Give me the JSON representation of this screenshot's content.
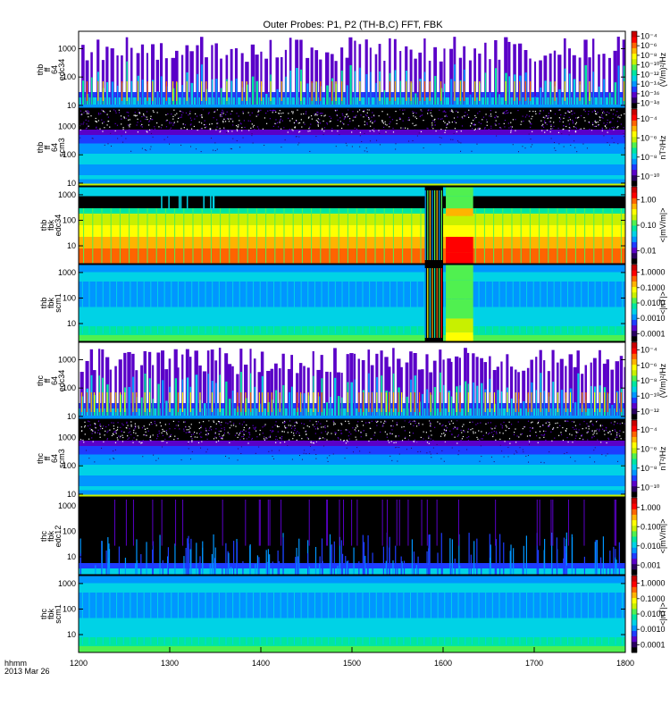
{
  "title": "Outer Probes: P1, P2 (TH-B,C) FFT, FBK",
  "time_axis": {
    "units_label": "hhmm",
    "date_label": "2013 Mar 26",
    "ticks": [
      "1200",
      "1300",
      "1400",
      "1500",
      "1600",
      "1700",
      "1800"
    ]
  },
  "colors": {
    "colormap": [
      "#000000",
      "#2a0060",
      "#5a00c8",
      "#1e3cff",
      "#0096ff",
      "#00d2e6",
      "#00e6a0",
      "#50f050",
      "#c8f000",
      "#ffff00",
      "#ffb400",
      "#ff6400",
      "#ff0000",
      "#c80000"
    ]
  },
  "chart_data": [
    {
      "type": "heatmap",
      "probe": "thb",
      "panel_label": [
        "thb",
        "ff",
        "64",
        "edc34"
      ],
      "y_ticks": [
        "10",
        "100",
        "1000"
      ],
      "ylim": [
        8,
        4096
      ],
      "scale": "log",
      "colorbar": {
        "label": "(V/m)²/Hz",
        "ticks": [
          "10⁻¹⁸",
          "10⁻¹⁶",
          "10⁻¹⁴",
          "10⁻¹²",
          "10⁻¹⁰",
          "10⁻⁸",
          "10⁻⁶",
          "10⁻⁴"
        ]
      },
      "style": "spiky"
    },
    {
      "type": "heatmap",
      "probe": "thb",
      "panel_label": [
        "thb",
        "ff",
        "64",
        "scm3"
      ],
      "y_ticks": [
        "10",
        "100",
        "1000"
      ],
      "ylim": [
        8,
        4096
      ],
      "scale": "log",
      "colorbar": {
        "label": "nT²/Hz",
        "ticks": [
          "10⁻¹⁰",
          "10⁻⁸",
          "10⁻⁶",
          "10⁻⁴"
        ]
      },
      "style": "scm"
    },
    {
      "type": "heatmap",
      "probe": "thb",
      "panel_label": [
        "thb",
        "fbk",
        "edc34"
      ],
      "y_ticks": [
        "10",
        "100",
        "1000"
      ],
      "ylim": [
        2,
        2048
      ],
      "scale": "log",
      "colorbar": {
        "label": "<|mV/m|>",
        "ticks": [
          "0.01",
          "0.10",
          "1.00"
        ]
      },
      "style": "fbk_e"
    },
    {
      "type": "heatmap",
      "probe": "thb",
      "panel_label": [
        "thb",
        "fbk",
        "scm1"
      ],
      "y_ticks": [
        "10",
        "100",
        "1000"
      ],
      "ylim": [
        2,
        2048
      ],
      "scale": "log",
      "colorbar": {
        "label": "<|nT|>",
        "ticks": [
          "0.0001",
          "0.0010",
          "0.0100",
          "0.1000",
          "1.0000"
        ]
      },
      "style": "fbk_b"
    },
    {
      "type": "heatmap",
      "probe": "thc",
      "panel_label": [
        "thc",
        "ff",
        "64",
        "edc34"
      ],
      "y_ticks": [
        "10",
        "100",
        "1000"
      ],
      "ylim": [
        8,
        4096
      ],
      "scale": "log",
      "colorbar": {
        "label": "(V/m)²/Hz",
        "ticks": [
          "10⁻¹²",
          "10⁻¹⁰",
          "10⁻⁸",
          "10⁻⁶",
          "10⁻⁴"
        ]
      },
      "style": "spiky_c"
    },
    {
      "type": "heatmap",
      "probe": "thc",
      "panel_label": [
        "thc",
        "ff",
        "64",
        "scm3"
      ],
      "y_ticks": [
        "10",
        "100",
        "1000"
      ],
      "ylim": [
        8,
        4096
      ],
      "scale": "log",
      "colorbar": {
        "label": "nT²/Hz",
        "ticks": [
          "10⁻¹⁰",
          "10⁻⁸",
          "10⁻⁶",
          "10⁻⁴"
        ]
      },
      "style": "scm"
    },
    {
      "type": "heatmap",
      "probe": "thc",
      "panel_label": [
        "thc",
        "fbk",
        "edc12"
      ],
      "y_ticks": [
        "10",
        "100",
        "1000"
      ],
      "ylim": [
        2,
        2048
      ],
      "scale": "log",
      "colorbar": {
        "label": "<|mV/m|>",
        "ticks": [
          "0.001",
          "0.010",
          "0.100",
          "1.000"
        ]
      },
      "style": "fbk_dark"
    },
    {
      "type": "heatmap",
      "probe": "thc",
      "panel_label": [
        "thc",
        "fbk",
        "scm1"
      ],
      "y_ticks": [
        "10",
        "100",
        "1000"
      ],
      "ylim": [
        2,
        2048
      ],
      "scale": "log",
      "colorbar": {
        "label": "<|nT|>",
        "ticks": [
          "0.0001",
          "0.0010",
          "0.0100",
          "0.1000",
          "1.0000"
        ]
      },
      "style": "fbk_b_c"
    }
  ]
}
